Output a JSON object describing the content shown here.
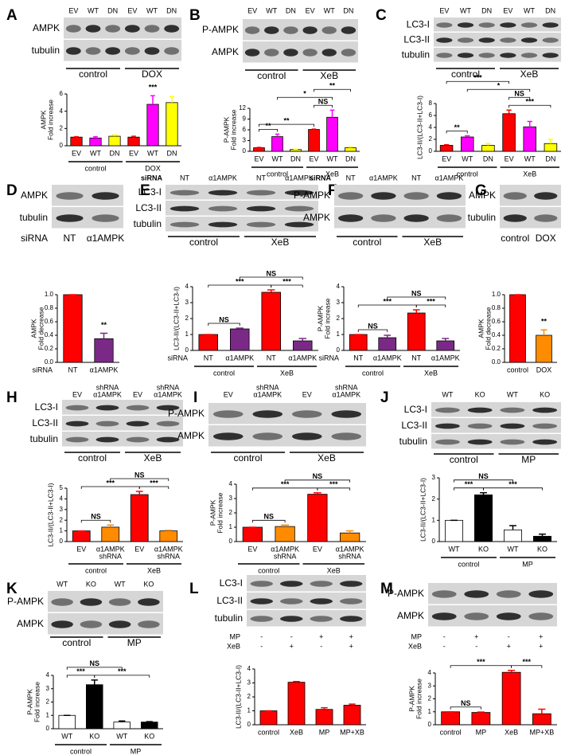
{
  "panels": [
    {
      "letter": "A",
      "blot": {
        "columns": [
          "EV",
          "WT",
          "DN",
          "EV",
          "WT",
          "DN"
        ],
        "rows": [
          "AMPK",
          "tubulin"
        ],
        "groups": [
          "control",
          "DOX"
        ]
      },
      "chart_data": {
        "type": "bar",
        "ylabel": [
          "AMPK",
          "Fold increase"
        ],
        "categories": [
          "EV",
          "WT",
          "DN",
          "EV",
          "WT",
          "DN"
        ],
        "groups": [
          "control",
          "DOX"
        ],
        "values": [
          1,
          0.9,
          1.1,
          1,
          4.8,
          5.0
        ],
        "errors": [
          0.05,
          0.15,
          0.15,
          0.1,
          1.0,
          0.7
        ],
        "colors": [
          "#ff0000",
          "#ff00ff",
          "#ffff00",
          "#ff0000",
          "#ff00ff",
          "#ffff00"
        ],
        "ylim": [
          0,
          6
        ],
        "yticks": [
          0,
          2,
          4,
          6
        ],
        "annotations": [
          "***"
        ]
      }
    },
    {
      "letter": "B",
      "blot": {
        "columns": [
          "EV",
          "WT",
          "DN",
          "EV",
          "WT",
          "DN"
        ],
        "rows": [
          "P-AMPK",
          "AMPK"
        ],
        "groups": [
          "control",
          "XeB"
        ]
      },
      "chart_data": {
        "type": "bar",
        "ylabel": [
          "P-AMPK",
          "Fold increase"
        ],
        "categories": [
          "EV",
          "WT",
          "DN",
          "EV",
          "WT",
          "DN"
        ],
        "groups": [
          "control",
          "XeB"
        ],
        "values": [
          1,
          4.1,
          0.5,
          6.1,
          9.5,
          1.0
        ],
        "errors": [
          0.1,
          0.7,
          0.1,
          0.1,
          2.0,
          0.2
        ],
        "colors": [
          "#ff0000",
          "#ff00ff",
          "#ffff00",
          "#ff0000",
          "#ff00ff",
          "#ffff00"
        ],
        "ylim": [
          0,
          12
        ],
        "yticks": [
          0,
          3,
          6,
          9,
          12
        ],
        "annotations": [
          "**",
          "**",
          "*",
          "NS",
          "**"
        ]
      }
    },
    {
      "letter": "C",
      "blot": {
        "columns": [
          "EV",
          "WT",
          "DN",
          "EV",
          "WT",
          "DN"
        ],
        "rows": [
          "LC3-I",
          "LC3-II",
          "tubulin"
        ],
        "groups": [
          "control",
          "XeB"
        ]
      },
      "chart_data": {
        "type": "bar",
        "ylabel": [
          "LC3-II/(LC3-II+LC3-I)"
        ],
        "categories": [
          "EV",
          "WT",
          "DN",
          "EV",
          "WT",
          "DN"
        ],
        "groups": [
          "control",
          "XeB"
        ],
        "values": [
          1,
          2.4,
          1.0,
          6.3,
          4.1,
          1.3
        ],
        "errors": [
          0.1,
          0.2,
          0.3,
          0.6,
          0.9,
          0.7
        ],
        "colors": [
          "#ff0000",
          "#ff00ff",
          "#ffff00",
          "#ff0000",
          "#ff00ff",
          "#ffff00"
        ],
        "ylim": [
          0,
          8
        ],
        "yticks": [
          0,
          2,
          4,
          6,
          8
        ],
        "annotations": [
          "***",
          "**",
          "*",
          "NS",
          "***"
        ]
      }
    },
    {
      "letter": "D",
      "blot": {
        "rows": [
          "AMPK",
          "tubulin"
        ],
        "below_prefix": "siRNA",
        "below_columns": [
          "NT",
          "α1AMPK"
        ]
      },
      "chart_data": {
        "type": "bar",
        "ylabel": [
          "AMPK",
          "Fold decrease"
        ],
        "category_prefix": "siRNA",
        "categories": [
          "NT",
          "α1AMPK"
        ],
        "values": [
          1.0,
          0.35
        ],
        "errors": [
          0,
          0.08
        ],
        "colors": [
          "#ff0000",
          "#7a2a86"
        ],
        "ylim": [
          0,
          1.0
        ],
        "yticks": [
          {
            "value": 0,
            "label": "0.0"
          },
          0.2,
          0.4,
          0.6,
          0.8,
          {
            "value": 1.0,
            "label": "1.0"
          }
        ],
        "annotations": [
          "**"
        ]
      }
    },
    {
      "letter": "E",
      "blot": {
        "column_prefix": "siRNA",
        "columns": [
          "NT",
          "α1AMPK",
          "NT",
          "α1AMPK"
        ],
        "rows": [
          "LC3-I",
          "LC3-II",
          "tubulin"
        ],
        "groups": [
          "control",
          "XeB"
        ]
      },
      "chart_data": {
        "type": "bar",
        "ylabel": [
          "LC3-II/(LC3-II+LC3-I)"
        ],
        "category_prefix": "siRNA",
        "categories": [
          "NT",
          "α1AMPK",
          "NT",
          "α1AMPK"
        ],
        "groups": [
          "control",
          "XeB"
        ],
        "values": [
          1,
          1.35,
          3.65,
          0.6
        ],
        "errors": [
          0,
          0.05,
          0.15,
          0.15
        ],
        "colors": [
          "#ff0000",
          "#7a2a86",
          "#ff0000",
          "#7a2a86"
        ],
        "ylim": [
          0,
          4
        ],
        "yticks": [
          0,
          1,
          2,
          3,
          4
        ],
        "annotations": [
          "NS",
          "***",
          "NS",
          "***"
        ]
      }
    },
    {
      "letter": "F",
      "blot": {
        "column_prefix": "siRNA",
        "columns": [
          "NT",
          "α1AMPK",
          "NT",
          "α1AMPK"
        ],
        "rows": [
          "P-AMPK",
          "AMPK"
        ],
        "groups": [
          "control",
          "XeB"
        ]
      },
      "chart_data": {
        "type": "bar",
        "ylabel": [
          "P-AMPK",
          "Fold increase"
        ],
        "category_prefix": "siRNA",
        "categories": [
          "NT",
          "α1AMPK",
          "NT",
          "α1AMPK"
        ],
        "groups": [
          "control",
          "XeB"
        ],
        "values": [
          1,
          0.8,
          2.35,
          0.6
        ],
        "errors": [
          0,
          0.15,
          0.2,
          0.15
        ],
        "colors": [
          "#ff0000",
          "#7a2a86",
          "#ff0000",
          "#7a2a86"
        ],
        "ylim": [
          0,
          4
        ],
        "yticks": [
          0,
          1,
          2,
          3,
          4
        ],
        "annotations": [
          "NS",
          "***",
          "NS",
          "***"
        ]
      }
    },
    {
      "letter": "G",
      "blot": {
        "rows": [
          "AMPK",
          "tubulin"
        ],
        "below_columns": [
          "control",
          "DOX"
        ]
      },
      "chart_data": {
        "type": "bar",
        "ylabel": [
          "AMPK",
          "Fold decrease"
        ],
        "categories": [
          "control",
          "DOX"
        ],
        "values": [
          1.0,
          0.4
        ],
        "errors": [
          0,
          0.08
        ],
        "colors": [
          "#ff0000",
          "#ff8c00"
        ],
        "ylim": [
          0,
          1.0
        ],
        "yticks": [
          {
            "value": 0,
            "label": "0.0"
          },
          0.2,
          0.4,
          0.6,
          0.8,
          {
            "value": 1.0,
            "label": "1.0"
          }
        ],
        "annotations": [
          "**"
        ]
      }
    },
    {
      "letter": "H",
      "blot": {
        "columns": [
          "EV",
          "shRNA",
          "EV",
          "shRNA"
        ],
        "column_sublabels": [
          null,
          "α1AMPK",
          null,
          "α1AMPK"
        ],
        "rows": [
          "LC3-I",
          "LC3-II",
          "tubulin"
        ],
        "groups": [
          "control",
          "XeB"
        ]
      },
      "chart_data": {
        "type": "bar",
        "ylabel": [
          "LC3-II/(LC3-II+LC3-I)"
        ],
        "categories": [
          "EV",
          "α1AMPK",
          "EV",
          "α1AMPK"
        ],
        "category_sublabels": [
          null,
          "shRNA",
          null,
          "shRNA"
        ],
        "groups": [
          "control",
          "XeB"
        ],
        "values": [
          1,
          1.35,
          4.4,
          1.0
        ],
        "errors": [
          0,
          0.2,
          0.3,
          0.05
        ],
        "colors": [
          "#ff0000",
          "#ff8c00",
          "#ff0000",
          "#ff8c00"
        ],
        "ylim": [
          0,
          5
        ],
        "yticks": [
          0,
          1,
          2,
          3,
          4,
          5
        ],
        "annotations": [
          "NS",
          "***",
          "NS",
          "***"
        ]
      }
    },
    {
      "letter": "I",
      "blot": {
        "columns": [
          "EV",
          "shRNA",
          "EV",
          "shRNA"
        ],
        "column_sublabels": [
          null,
          "α1AMPK",
          null,
          "α1AMPK"
        ],
        "rows": [
          "P-AMPK",
          "AMPK"
        ],
        "groups": [
          "control",
          "XeB"
        ]
      },
      "chart_data": {
        "type": "bar",
        "ylabel": [
          "P-AMPK",
          "Fold increase"
        ],
        "categories": [
          "EV",
          "α1AMPK",
          "EV",
          "α1AMPK"
        ],
        "category_sublabels": [
          null,
          "shRNA",
          null,
          "shRNA"
        ],
        "groups": [
          "control",
          "XeB"
        ],
        "values": [
          1,
          1.05,
          3.3,
          0.6
        ],
        "errors": [
          0,
          0.1,
          0.1,
          0.15
        ],
        "colors": [
          "#ff0000",
          "#ff8c00",
          "#ff0000",
          "#ff8c00"
        ],
        "ylim": [
          0,
          4
        ],
        "yticks": [
          0,
          1,
          2,
          3,
          4
        ],
        "annotations": [
          "NS",
          "***",
          "NS",
          "***"
        ]
      }
    },
    {
      "letter": "J",
      "blot": {
        "columns": [
          "WT",
          "KO",
          "WT",
          "KO"
        ],
        "rows": [
          "LC3-I",
          "LC3-II",
          "tubulin"
        ],
        "groups": [
          "control",
          "MP"
        ]
      },
      "chart_data": {
        "type": "bar",
        "ylabel": [
          "LC3-II/(LC3-II+LC3-I)"
        ],
        "categories": [
          "WT",
          "KO",
          "WT",
          "KO"
        ],
        "groups": [
          "control",
          "MP"
        ],
        "values": [
          1.0,
          2.2,
          0.55,
          0.25
        ],
        "errors": [
          0,
          0.1,
          0.2,
          0.1
        ],
        "colors": [
          "#ffffff",
          "#000000",
          "#ffffff",
          "#000000"
        ],
        "ylim": [
          0,
          3
        ],
        "yticks": [
          0,
          1,
          2,
          3
        ],
        "annotations": [
          "NS",
          "***",
          "***"
        ]
      }
    },
    {
      "letter": "K",
      "blot": {
        "columns": [
          "WT",
          "KO",
          "WT",
          "KO"
        ],
        "rows": [
          "P-AMPK",
          "AMPK"
        ],
        "groups": [
          "control",
          "MP"
        ]
      },
      "chart_data": {
        "type": "bar",
        "ylabel": [
          "P-AMPK",
          "Fold increase"
        ],
        "categories": [
          "WT",
          "KO",
          "WT",
          "KO"
        ],
        "groups": [
          "control",
          "MP"
        ],
        "values": [
          1.0,
          3.3,
          0.5,
          0.5
        ],
        "errors": [
          0,
          0.35,
          0.08,
          0.03
        ],
        "colors": [
          "#ffffff",
          "#000000",
          "#ffffff",
          "#000000"
        ],
        "ylim": [
          0,
          4
        ],
        "yticks": [
          0,
          1,
          2,
          3,
          4
        ],
        "annotations": [
          "NS",
          "***",
          "***"
        ]
      }
    },
    {
      "letter": "L",
      "blot": {
        "rows": [
          "LC3-I",
          "LC3-II",
          "tubulin"
        ],
        "sign_rows": [
          {
            "label": "MP",
            "signs": [
              "-",
              "-",
              "+",
              "+"
            ]
          },
          {
            "label": "XeB",
            "signs": [
              "-",
              "+",
              "-",
              "+"
            ]
          }
        ]
      },
      "chart_data": {
        "type": "bar",
        "ylabel": [
          "LC3-II/(LC3-II+LC3-I)"
        ],
        "categories": [
          "control",
          "XeB",
          "MP",
          "MP+XB"
        ],
        "values": [
          1,
          3.05,
          1.1,
          1.4
        ],
        "errors": [
          0,
          0.05,
          0.12,
          0.08
        ],
        "colors": [
          "#ff0000",
          "#ff0000",
          "#ff0000",
          "#ff0000"
        ],
        "ylim": [
          0,
          4
        ],
        "yticks": [
          0,
          1,
          2,
          3,
          4
        ]
      }
    },
    {
      "letter": "M",
      "blot": {
        "rows": [
          "P-AMPK",
          "AMPK"
        ],
        "sign_rows": [
          {
            "label": "MP",
            "signs": [
              "-",
              "+",
              "-",
              "+"
            ]
          },
          {
            "label": "XeB",
            "signs": [
              "-",
              "-",
              "+",
              "+"
            ]
          }
        ]
      },
      "chart_data": {
        "type": "bar",
        "ylabel": [
          "P-AMPK",
          "Fold increase"
        ],
        "categories": [
          "control",
          "MP",
          "XeB",
          "MP+XB"
        ],
        "values": [
          1,
          0.95,
          4.05,
          0.85
        ],
        "errors": [
          0,
          0.03,
          0.15,
          0.35
        ],
        "colors": [
          "#ff0000",
          "#ff0000",
          "#ff0000",
          "#ff0000"
        ],
        "ylim": [
          0,
          4
        ],
        "yticks": [
          0,
          1,
          2,
          3,
          4
        ],
        "annotations": [
          "NS",
          "***",
          "***"
        ]
      }
    }
  ]
}
